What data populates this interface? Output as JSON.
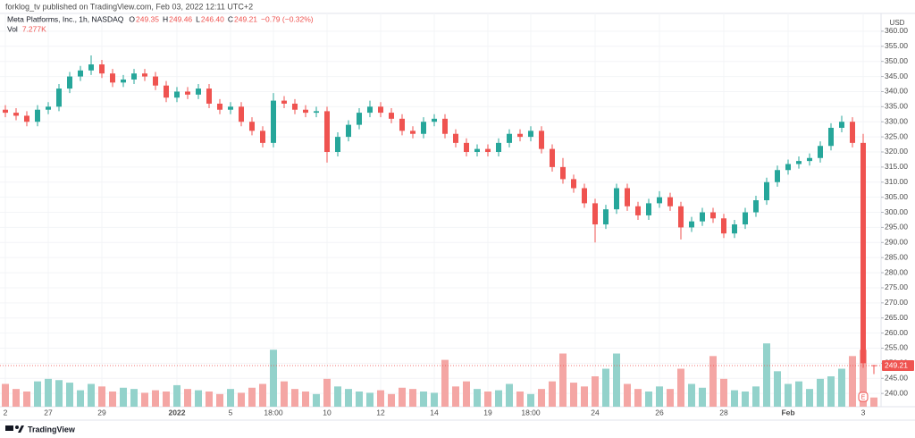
{
  "header": "forklog_tv published on TradingView.com, Feb 03, 2022 12:11 UTC+2",
  "footer": "TradingView",
  "chart_data": {
    "type": "candlestick",
    "title": "Meta Platforms, Inc., 1h, NASDAQ",
    "ohlc_labels": [
      {
        "prefix": "O",
        "text": "249.35"
      },
      {
        "prefix": "H",
        "text": "249.46"
      },
      {
        "prefix": "L",
        "text": "246.40"
      },
      {
        "prefix": "C",
        "text": "249.21"
      }
    ],
    "change_label": "−0.79 (−0.32%)",
    "volume_name": "Vol",
    "volume_label": "7.277K",
    "currency": "USD",
    "last_price_label": "249.21",
    "event_marker": "E",
    "up_color": "#26a69a",
    "down_color": "#ef5350",
    "volume_up_color": "#93d2cb",
    "volume_down_color": "#f4a6a4",
    "grid": true,
    "categories": [
      "2",
      null,
      null,
      null,
      "27",
      null,
      null,
      null,
      null,
      "29",
      null,
      null,
      null,
      null,
      null,
      null,
      "2022",
      null,
      null,
      null,
      null,
      "5",
      null,
      null,
      null,
      "18:00",
      null,
      null,
      null,
      null,
      "10",
      null,
      null,
      null,
      null,
      "12",
      null,
      null,
      null,
      null,
      "14",
      null,
      null,
      null,
      null,
      "19",
      null,
      null,
      null,
      "18:00",
      null,
      null,
      null,
      null,
      null,
      "24",
      null,
      null,
      null,
      null,
      null,
      "26",
      null,
      null,
      null,
      null,
      null,
      "28",
      null,
      null,
      null,
      null,
      null,
      "Feb",
      null,
      null,
      null,
      null,
      null,
      null,
      "3",
      null
    ],
    "open": [
      334,
      333,
      332,
      330,
      334,
      335,
      341,
      345,
      347,
      349,
      346,
      343,
      344,
      346,
      345,
      342,
      338,
      340,
      339,
      341,
      336,
      334,
      335,
      330,
      327,
      323,
      337,
      336,
      334,
      333,
      333.5,
      320,
      325,
      329,
      333,
      335,
      333,
      331,
      327,
      326,
      330,
      331,
      326,
      323,
      320,
      321,
      320,
      323,
      326,
      325,
      327,
      321,
      315,
      311,
      308,
      303,
      296,
      301,
      308,
      302,
      299,
      303,
      305,
      302,
      295,
      297,
      300,
      298,
      293,
      296,
      300,
      304,
      310,
      314,
      316,
      317,
      318,
      322,
      328,
      330,
      323,
      249.35
    ],
    "high": [
      335.5,
      334.5,
      333.5,
      335.5,
      336.5,
      342.5,
      346.5,
      348.5,
      352,
      350.5,
      347.5,
      345.5,
      347.5,
      347.5,
      346.5,
      343.5,
      341.5,
      341.5,
      342.5,
      342.5,
      337.5,
      336.5,
      336.5,
      331.5,
      328.5,
      339.5,
      338.5,
      337.5,
      335.5,
      335,
      335,
      326.5,
      330.5,
      334.5,
      337,
      336.5,
      334.5,
      332.5,
      328.5,
      331.5,
      332.5,
      332.5,
      327.5,
      324.5,
      322.5,
      322.5,
      324.5,
      327.5,
      327.5,
      328.5,
      328.5,
      322.5,
      318,
      312.5,
      309.5,
      304.5,
      302.5,
      309.5,
      309.5,
      303.5,
      304.5,
      307,
      306.5,
      303.5,
      298.5,
      301.5,
      301.5,
      299.5,
      297.5,
      301.5,
      305.5,
      311.5,
      315.5,
      317.5,
      318.5,
      319.5,
      323.5,
      329.5,
      332,
      331.5,
      326,
      249.46
    ],
    "low": [
      331.5,
      330.5,
      328.5,
      328.5,
      332.5,
      333.5,
      339.5,
      343.5,
      345.5,
      344.5,
      341.5,
      341.5,
      342.5,
      343.5,
      340.5,
      336.5,
      336.5,
      337.5,
      337.5,
      334.5,
      332.5,
      332.5,
      328.5,
      325.5,
      321.5,
      321.5,
      334.5,
      332.5,
      331.5,
      331.5,
      316.5,
      318.5,
      323.5,
      327.5,
      331.5,
      331.5,
      329.5,
      325.5,
      324.5,
      324.5,
      328.5,
      324.5,
      321.5,
      318.5,
      318.5,
      318.5,
      318.5,
      321.5,
      323.5,
      323.5,
      319.5,
      313.5,
      309.5,
      306.5,
      301.5,
      290,
      294.5,
      299.5,
      300.5,
      297.5,
      297.5,
      301.5,
      300.5,
      291,
      293.5,
      295.5,
      296.5,
      291.5,
      291.5,
      294.5,
      298.5,
      302.5,
      308.5,
      312.5,
      314.5,
      315.5,
      316.5,
      320.5,
      326.5,
      321.5,
      248.5,
      246.4
    ],
    "close": [
      333,
      332,
      330,
      334,
      335,
      341,
      345,
      347,
      349,
      346,
      343,
      344,
      346,
      345,
      342,
      338,
      340,
      339,
      341,
      336,
      334,
      335,
      330,
      327,
      323,
      337,
      336,
      334,
      333,
      333.5,
      320,
      325,
      329,
      333,
      335,
      333,
      331,
      327,
      326,
      330,
      331,
      326,
      323,
      320,
      321,
      320,
      323,
      326,
      325,
      327,
      321,
      315,
      311,
      308,
      303,
      296,
      301,
      308,
      302,
      299,
      303,
      305,
      302,
      295,
      297,
      300,
      298,
      293,
      296,
      300,
      304,
      310,
      314,
      316,
      317,
      318,
      322,
      328,
      330,
      323,
      250,
      249.21
    ],
    "volume": [
      18,
      14,
      12,
      20,
      22,
      21,
      19,
      13,
      18,
      16,
      12,
      15,
      14,
      11,
      13,
      12,
      17,
      14,
      13,
      12,
      10,
      14,
      11,
      15,
      18,
      45,
      20,
      14,
      12,
      10,
      22,
      16,
      14,
      12,
      11,
      13,
      10,
      15,
      14,
      12,
      11,
      37,
      16,
      20,
      14,
      12,
      13,
      18,
      12,
      10,
      14,
      20,
      42,
      19,
      16,
      24,
      30,
      42,
      18,
      14,
      12,
      16,
      14,
      30,
      18,
      15,
      40,
      22,
      13,
      12,
      16,
      50,
      28,
      18,
      20,
      14,
      22,
      24,
      30,
      40,
      45,
      7.277
    ],
    "volume_lim": [
      0,
      60
    ],
    "ylim": [
      235.6,
      365.9
    ],
    "yticks": [
      {
        "value": 240,
        "label": "240.00"
      },
      {
        "value": 245,
        "label": "245.00"
      },
      {
        "value": 250,
        "label": "250.00"
      },
      {
        "value": 255,
        "label": "255.00"
      },
      {
        "value": 260,
        "label": "260.00"
      },
      {
        "value": 265,
        "label": "265.00"
      },
      {
        "value": 270,
        "label": "270.00"
      },
      {
        "value": 275,
        "label": "275.00"
      },
      {
        "value": 280,
        "label": "280.00"
      },
      {
        "value": 285,
        "label": "285.00"
      },
      {
        "value": 290,
        "label": "290.00"
      },
      {
        "value": 295,
        "label": "295.00"
      },
      {
        "value": 300,
        "label": "300.00"
      },
      {
        "value": 305,
        "label": "305.00"
      },
      {
        "value": 310,
        "label": "310.00"
      },
      {
        "value": 315,
        "label": "315.00"
      },
      {
        "value": 320,
        "label": "320.00"
      },
      {
        "value": 325,
        "label": "325.00"
      },
      {
        "value": 330,
        "label": "330.00"
      },
      {
        "value": 335,
        "label": "335.00"
      },
      {
        "value": 340,
        "label": "340.00"
      },
      {
        "value": 345,
        "label": "345.00"
      },
      {
        "value": 350,
        "label": "350.00"
      },
      {
        "value": 355,
        "label": "355.00"
      },
      {
        "value": 360,
        "label": "360.00"
      }
    ]
  }
}
